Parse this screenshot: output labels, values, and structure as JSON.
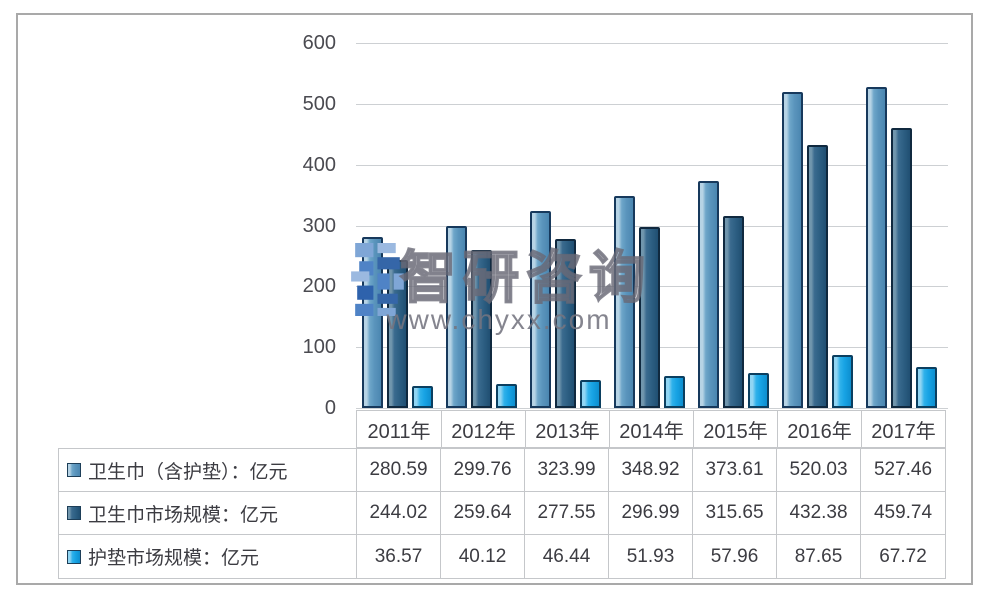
{
  "watermark": {
    "brand": "智研咨询",
    "url": "www.chyxx.com",
    "logo_icon": "blue-pixel-blocks-logo"
  },
  "chart_data": {
    "type": "bar",
    "title": "",
    "xlabel": "",
    "ylabel": "",
    "categories": [
      "2011年",
      "2012年",
      "2013年",
      "2014年",
      "2015年",
      "2016年",
      "2017年"
    ],
    "series": [
      {
        "name": "卫生巾（含护垫）：亿元",
        "color": "#5B95BD",
        "values": [
          280.59,
          299.76,
          323.99,
          348.92,
          373.61,
          520.03,
          527.46
        ]
      },
      {
        "name": "卫生巾市场规模：亿元",
        "color": "#2D5F83",
        "values": [
          244.02,
          259.64,
          277.55,
          296.99,
          315.65,
          432.38,
          459.74
        ]
      },
      {
        "name": "护垫市场规模：亿元",
        "color": "#17A3E4",
        "values": [
          36.57,
          40.12,
          46.44,
          51.93,
          57.96,
          87.65,
          67.72
        ]
      }
    ],
    "ylim": [
      0,
      600
    ],
    "yticks": [
      600,
      500,
      400,
      300,
      200,
      100,
      0
    ],
    "grid": true,
    "legend_position": "table-below-left"
  }
}
